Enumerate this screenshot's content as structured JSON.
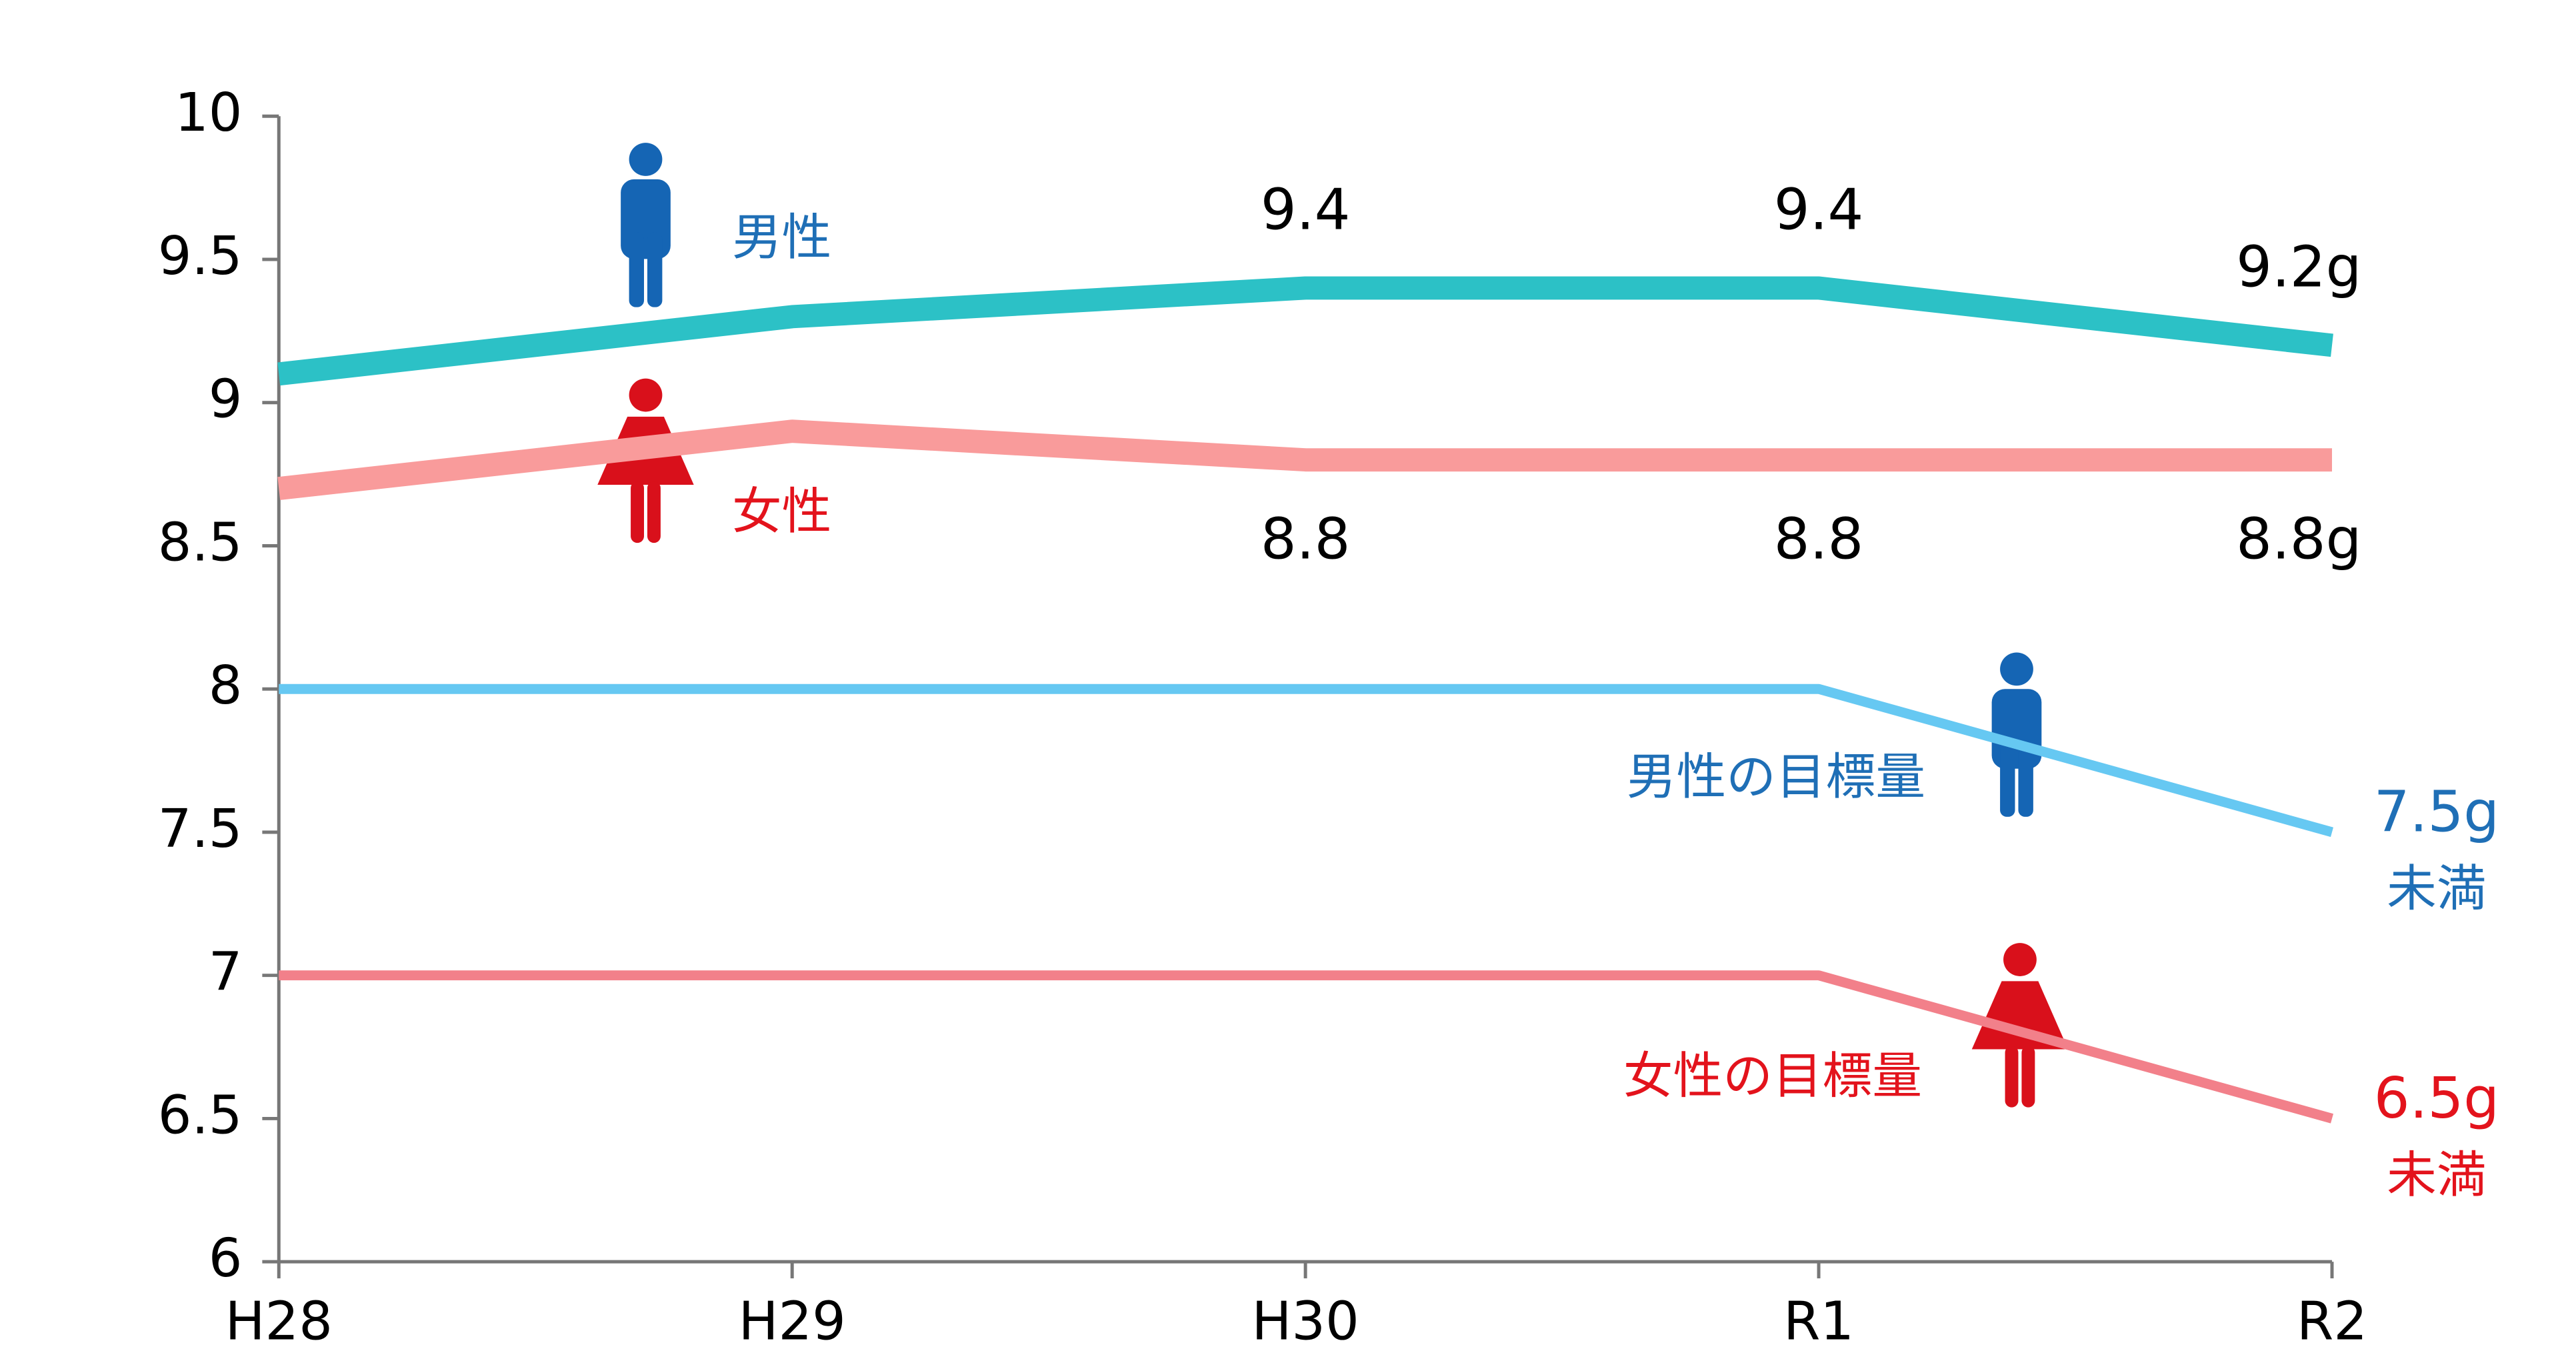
{
  "chart_data": {
    "type": "line",
    "categories": [
      "H28",
      "H29",
      "H30",
      "R1",
      "R2"
    ],
    "series": [
      {
        "name": "男性",
        "color": "#2cc1c6",
        "label_color": "#1f6fb6",
        "values": [
          9.1,
          9.3,
          9.4,
          9.4,
          9.2
        ],
        "value_labels": [
          null,
          null,
          "9.4",
          "9.4",
          "9.2g"
        ]
      },
      {
        "name": "女性",
        "color": "#f99b9b",
        "label_color": "#e3131c",
        "values": [
          8.7,
          8.9,
          8.8,
          8.8,
          8.8
        ],
        "value_labels": [
          null,
          null,
          "8.8",
          "8.8",
          "8.8g"
        ]
      },
      {
        "name": "男性の目標量",
        "color": "#66c8f2",
        "label_color": "#1f6fb6",
        "values": [
          8,
          8,
          8,
          8,
          7.5
        ],
        "value_labels": [
          null,
          null,
          null,
          null,
          "7.5g"
        ],
        "label_suffix": "未満"
      },
      {
        "name": "女性の目標量",
        "color": "#f2808a",
        "label_color": "#e3131c",
        "values": [
          7,
          7,
          7,
          7,
          6.5
        ],
        "value_labels": [
          null,
          null,
          null,
          null,
          "6.5g"
        ],
        "label_suffix": "未満"
      }
    ],
    "ylim": [
      6,
      10
    ],
    "yticks": [
      6,
      6.5,
      7,
      7.5,
      8,
      8.5,
      9,
      9.5,
      10
    ]
  }
}
